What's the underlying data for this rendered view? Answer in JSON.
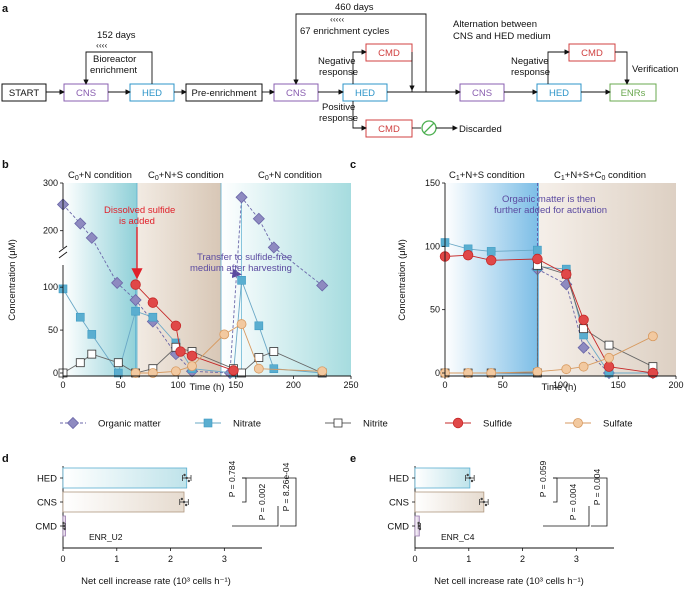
{
  "panel_a": {
    "label": "a",
    "start": "START",
    "cns": "CNS",
    "hed": "HED",
    "pre": "Pre-enrichment",
    "cmd": "CMD",
    "enrs": "ENRs",
    "days152": "152 days",
    "bioreactor1": "Bioreactor",
    "bioreactor2": "enrichment",
    "days460": "460 days",
    "cycles": "67 enrichment cycles",
    "alt1": "Alternation between",
    "alt2": "CNS and HED medium",
    "neg1": "Negative",
    "neg2": "response",
    "pos1": "Positive",
    "pos2": "response",
    "discarded": "Discarded",
    "verification": "Verification",
    "colors": {
      "cns": "#8a5fb0",
      "hed": "#2c94c8",
      "cmd": "#d04040",
      "enr": "#6aa84f",
      "discard": "#4caf50"
    }
  },
  "panel_b": {
    "label": "b",
    "cond1": "C",
    "cond1sub": "0",
    "cond1rest": "+N condition",
    "cond2": "C",
    "cond2sub": "0",
    "cond2rest": "+N+S condition",
    "cond3": "C",
    "cond3sub": "0",
    "cond3rest": "+N condition",
    "ann1a": "Dissolved sulfide",
    "ann1b": "is added",
    "ann2a": "Transfer to sulfide-free",
    "ann2b": "medium after harvesting",
    "xlabel": "Time (h)",
    "ylabel": "Concentration (μM)",
    "xticks": [
      "0",
      "50",
      "100",
      "150",
      "200",
      "250"
    ],
    "yticks_low": [
      "0",
      "50",
      "100"
    ],
    "yticks_high": [
      "200",
      "300"
    ]
  },
  "panel_c": {
    "label": "c",
    "cond1": "C",
    "cond1sub": "1",
    "cond1rest": "+N+S condition",
    "cond2": "C",
    "cond2sub": "1",
    "cond2rest": "+N+S+C",
    "cond2sub2": "0",
    "cond2rest2": " condition",
    "ann1a": "Organic matter is then",
    "ann1b": "further added for activation",
    "xlabel": "Time (h)",
    "ylabel": "Concentration (μM)",
    "xticks": [
      "0",
      "50",
      "100",
      "150",
      "200"
    ],
    "yticks": [
      "0",
      "50",
      "100",
      "150"
    ]
  },
  "legend": {
    "items": [
      "Organic matter",
      "Nitrate",
      "Nitrite",
      "Sulfide",
      "Sulfate"
    ]
  },
  "panel_d": {
    "label": "d",
    "cats": [
      "HED",
      "CNS",
      "CMD"
    ],
    "enr": "ENR_U2",
    "p1": "P = 0.784",
    "p2": "P = 8.26e-04",
    "p3": "P = 0.002",
    "xlabel": "Net cell increase rate (10³ cells h⁻¹)",
    "xticks": [
      "0",
      "1",
      "2",
      "3"
    ]
  },
  "panel_e": {
    "label": "e",
    "cats": [
      "HED",
      "CNS",
      "CMD"
    ],
    "enr": "ENR_C4",
    "p1": "P = 0.059",
    "p2": "P = 0.004",
    "p3": "P = 0.004",
    "xlabel": "Net cell increase rate (10³ cells h⁻¹)",
    "xticks": [
      "0",
      "1",
      "2",
      "3"
    ]
  },
  "chart_data": [
    {
      "type": "line",
      "title": "Panel b",
      "xlabel": "Time (h)",
      "ylabel": "Concentration (μM)",
      "xlim": [
        0,
        250
      ],
      "ylim": [
        0,
        300
      ],
      "series": [
        {
          "name": "Organic matter",
          "color": "#8e8ac0",
          "points": [
            [
              0,
              255
            ],
            [
              15,
              215
            ],
            [
              25,
              185
            ],
            [
              47,
              105
            ],
            [
              63,
              85
            ],
            [
              78,
              60
            ],
            [
              98,
              22
            ],
            [
              112,
              2
            ],
            [
              145,
              0
            ],
            [
              155,
              270
            ],
            [
              170,
              225
            ],
            [
              183,
              165
            ],
            [
              225,
              102
            ]
          ]
        },
        {
          "name": "Nitrate",
          "color": "#5aaed0",
          "points": [
            [
              0,
              98
            ],
            [
              15,
              65
            ],
            [
              25,
              45
            ],
            [
              48,
              0
            ],
            [
              63,
              72
            ],
            [
              78,
              65
            ],
            [
              98,
              35
            ],
            [
              112,
              5
            ],
            [
              148,
              0
            ],
            [
              155,
              108
            ],
            [
              170,
              55
            ],
            [
              183,
              5
            ],
            [
              225,
              0
            ]
          ]
        },
        {
          "name": "Nitrite",
          "color": "#ffffff",
          "points": [
            [
              0,
              0
            ],
            [
              15,
              12
            ],
            [
              25,
              22
            ],
            [
              48,
              12
            ],
            [
              63,
              0
            ],
            [
              78,
              5
            ],
            [
              98,
              30
            ],
            [
              112,
              25
            ],
            [
              148,
              5
            ],
            [
              155,
              0
            ],
            [
              170,
              18
            ],
            [
              183,
              25
            ],
            [
              225,
              0
            ]
          ]
        },
        {
          "name": "Sulfide",
          "color": "#e04848",
          "points": [
            [
              63,
              103
            ],
            [
              78,
              82
            ],
            [
              98,
              55
            ],
            [
              102,
              25
            ],
            [
              112,
              20
            ],
            [
              148,
              3
            ]
          ]
        },
        {
          "name": "Sulfate",
          "color": "#f2c9a0",
          "points": [
            [
              63,
              0
            ],
            [
              78,
              0
            ],
            [
              98,
              2
            ],
            [
              112,
              8
            ],
            [
              140,
              45
            ],
            [
              155,
              57
            ],
            [
              170,
              5
            ],
            [
              225,
              2
            ]
          ]
        }
      ]
    },
    {
      "type": "line",
      "title": "Panel c",
      "xlabel": "Time (h)",
      "ylabel": "Concentration (μM)",
      "xlim": [
        0,
        200
      ],
      "ylim": [
        0,
        150
      ],
      "series": [
        {
          "name": "Organic matter",
          "color": "#8e8ac0",
          "points": [
            [
              80,
              82
            ],
            [
              105,
              70
            ],
            [
              120,
              20
            ],
            [
              142,
              0
            ],
            [
              180,
              0
            ]
          ]
        },
        {
          "name": "Nitrate",
          "color": "#5aaed0",
          "points": [
            [
              0,
              103
            ],
            [
              20,
              98
            ],
            [
              40,
              96
            ],
            [
              80,
              97
            ],
            [
              80,
              84
            ],
            [
              105,
              82
            ],
            [
              120,
              30
            ],
            [
              142,
              0
            ],
            [
              180,
              0
            ]
          ]
        },
        {
          "name": "Nitrite",
          "color": "#ffffff",
          "points": [
            [
              0,
              0
            ],
            [
              20,
              0
            ],
            [
              40,
              0
            ],
            [
              80,
              0
            ],
            [
              80,
              85
            ],
            [
              105,
              78
            ],
            [
              120,
              35
            ],
            [
              142,
              22
            ],
            [
              180,
              5
            ]
          ]
        },
        {
          "name": "Sulfide",
          "color": "#e04848",
          "points": [
            [
              0,
              92
            ],
            [
              20,
              93
            ],
            [
              40,
              89
            ],
            [
              80,
              90
            ],
            [
              105,
              78
            ],
            [
              120,
              42
            ],
            [
              142,
              5
            ],
            [
              180,
              0
            ]
          ]
        },
        {
          "name": "Sulfate",
          "color": "#f2c9a0",
          "points": [
            [
              0,
              0
            ],
            [
              20,
              0
            ],
            [
              40,
              0
            ],
            [
              80,
              1
            ],
            [
              105,
              3
            ],
            [
              120,
              5
            ],
            [
              142,
              12
            ],
            [
              180,
              29
            ]
          ]
        }
      ]
    },
    {
      "type": "bar",
      "title": "Panel d ENR_U2",
      "categories": [
        "HED",
        "CNS",
        "CMD"
      ],
      "values": [
        2.3,
        2.25,
        0.02
      ],
      "xlabel": "Net cell increase rate (10³ cells h⁻¹)",
      "xlim": [
        0,
        3.7
      ]
    },
    {
      "type": "bar",
      "title": "Panel e ENR_C4",
      "categories": [
        "HED",
        "CNS",
        "CMD"
      ],
      "values": [
        1.02,
        1.28,
        0.08
      ],
      "xlabel": "Net cell increase rate (10³ cells h⁻¹)",
      "xlim": [
        0,
        3.7
      ]
    }
  ]
}
